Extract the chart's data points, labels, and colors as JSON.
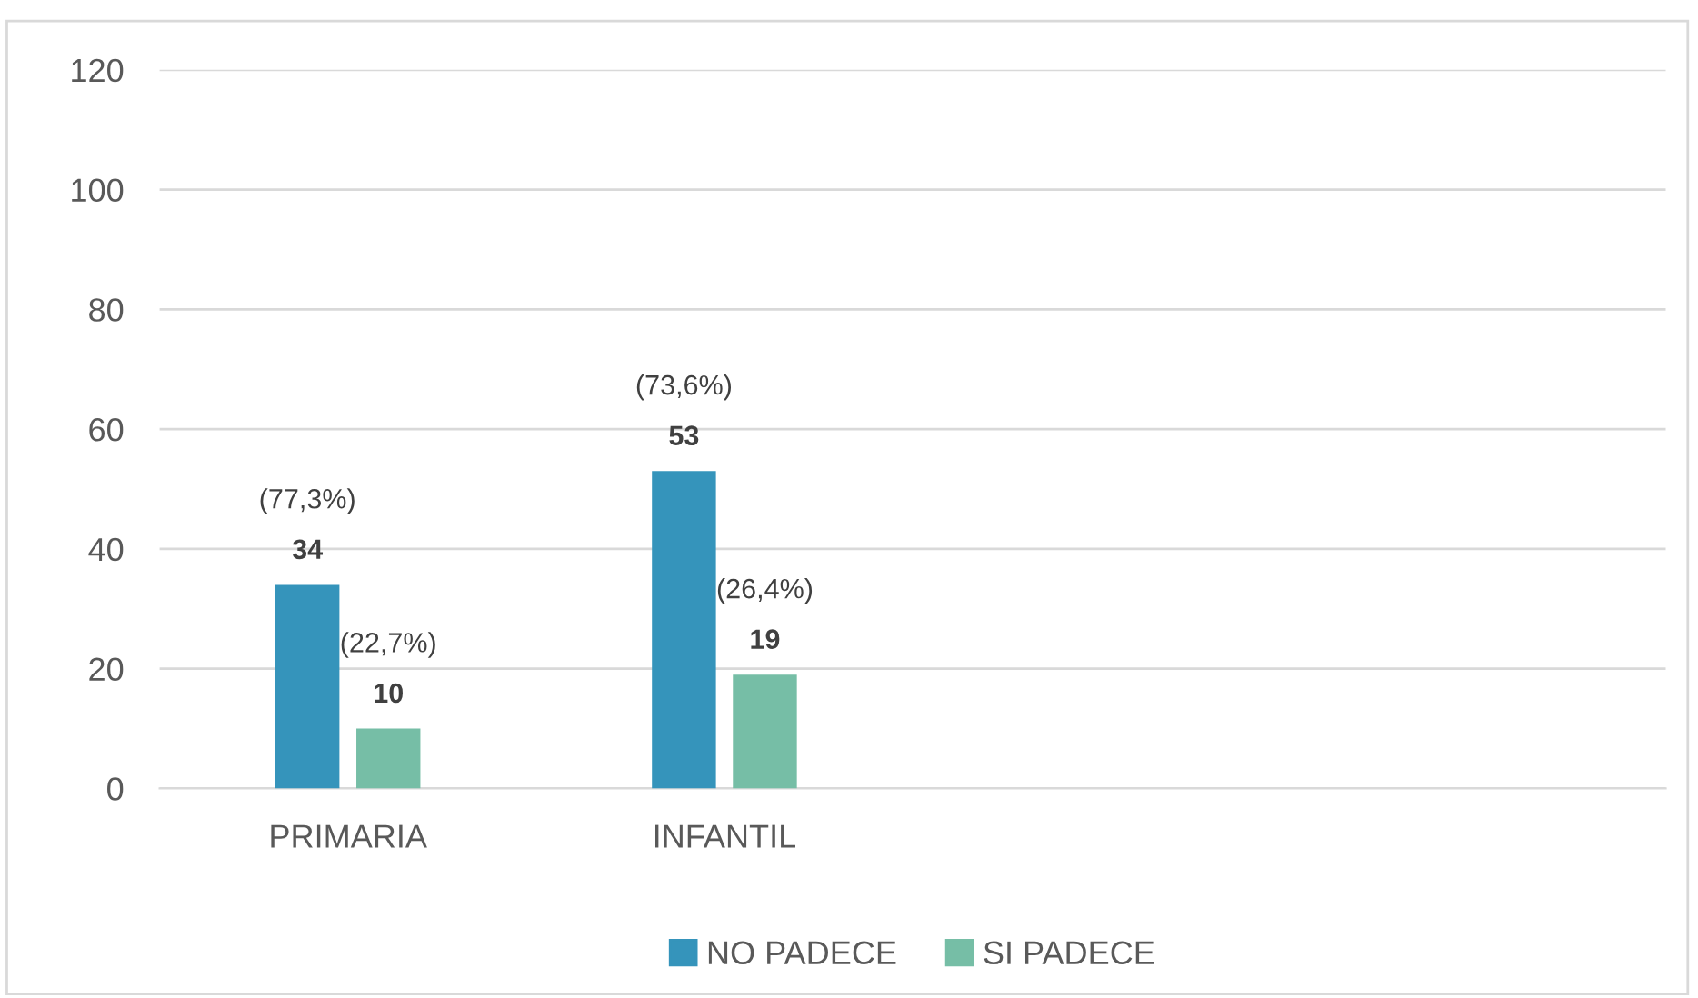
{
  "chart_data": {
    "type": "bar",
    "categories": [
      "PRIMARIA",
      "INFANTIL",
      null,
      null
    ],
    "series": [
      {
        "name": "NO PADECE",
        "color": "#3594bb",
        "values": [
          34,
          53,
          null,
          null
        ],
        "value_labels": [
          "(77,3%)\n34",
          "(73,6%)\n53",
          null,
          null
        ]
      },
      {
        "name": "SI PADECE",
        "color": "#76bea6",
        "values": [
          10,
          19,
          null,
          null
        ],
        "value_labels": [
          "(22,7%)\n10",
          "(26,4%)\n19",
          null,
          null
        ]
      }
    ],
    "ylim": [
      0,
      120
    ],
    "yticks": [
      0,
      20,
      40,
      60,
      80,
      100,
      120
    ],
    "grid": "y",
    "legend": "bottom"
  }
}
